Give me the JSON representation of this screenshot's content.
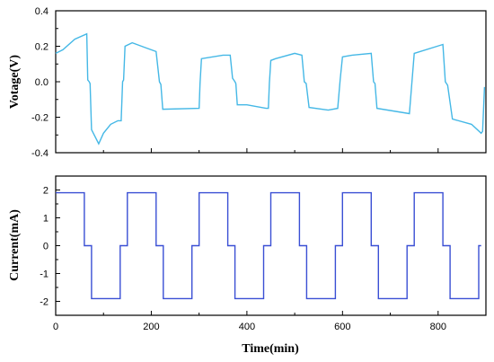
{
  "chart_data": [
    {
      "type": "line",
      "ylabel": "Votage(V)",
      "xlim": [
        0,
        900
      ],
      "ylim": [
        -0.4,
        0.4
      ],
      "yticks": [
        "0.4",
        "0.2",
        "0.0",
        "-0.2",
        "-0.4"
      ],
      "grid": false,
      "color": "#45b8e6",
      "series": [
        {
          "x": [
            0,
            15,
            40,
            65,
            67,
            70,
            72,
            75,
            90,
            100,
            115,
            130,
            137,
            140,
            142,
            145,
            160,
            190,
            210,
            217,
            220,
            224,
            300,
            302,
            305,
            350,
            365,
            370,
            375,
            377,
            380,
            400,
            440,
            445,
            447,
            450,
            460,
            500,
            515,
            520,
            524,
            530,
            570,
            590,
            595,
            600,
            620,
            660,
            665,
            668,
            672,
            740,
            745,
            750,
            810,
            815,
            820,
            830,
            870,
            890,
            893,
            897
          ],
          "y": [
            0.16,
            0.18,
            0.24,
            0.27,
            0.01,
            0.0,
            -0.01,
            -0.27,
            -0.35,
            -0.29,
            -0.24,
            -0.22,
            -0.22,
            0.0,
            0.01,
            0.2,
            0.22,
            0.19,
            0.17,
            0.0,
            -0.015,
            -0.155,
            -0.15,
            -0.01,
            0.13,
            0.15,
            0.15,
            0.02,
            0.0,
            -0.01,
            -0.13,
            -0.13,
            -0.15,
            -0.15,
            -0.01,
            0.12,
            0.13,
            0.16,
            0.15,
            0.0,
            -0.01,
            -0.145,
            -0.16,
            -0.15,
            0.01,
            0.14,
            0.15,
            0.16,
            0.0,
            -0.01,
            -0.15,
            -0.18,
            -0.01,
            0.16,
            0.21,
            0.0,
            -0.02,
            -0.21,
            -0.24,
            -0.29,
            -0.28,
            -0.03
          ]
        }
      ]
    },
    {
      "type": "line",
      "xlabel": "Time(min)",
      "ylabel": "Current(mA)",
      "xlim": [
        0,
        900
      ],
      "ylim": [
        -2.5,
        2.5
      ],
      "xticks": [
        "0",
        "200",
        "400",
        "600",
        "800"
      ],
      "yticks": [
        "2",
        "1",
        "0",
        "-1",
        "-2"
      ],
      "grid": false,
      "color": "#3a4fd4",
      "series": [
        {
          "x": [
            0,
            60,
            60,
            75,
            75,
            135,
            135,
            150,
            150,
            210,
            210,
            225,
            225,
            285,
            285,
            300,
            300,
            360,
            360,
            375,
            375,
            435,
            435,
            450,
            450,
            510,
            510,
            525,
            525,
            585,
            585,
            600,
            600,
            660,
            660,
            675,
            675,
            735,
            735,
            750,
            750,
            810,
            810,
            825,
            825,
            885,
            885,
            890
          ],
          "y": [
            1.9,
            1.9,
            0,
            0,
            -1.9,
            -1.9,
            0,
            0,
            1.9,
            1.9,
            0,
            0,
            -1.9,
            -1.9,
            0,
            0,
            1.9,
            1.9,
            0,
            0,
            -1.9,
            -1.9,
            0,
            0,
            1.9,
            1.9,
            0,
            0,
            -1.9,
            -1.9,
            0,
            0,
            1.9,
            1.9,
            0,
            0,
            -1.9,
            -1.9,
            0,
            0,
            1.9,
            1.9,
            0,
            0,
            -1.9,
            -1.9,
            0,
            0
          ]
        }
      ]
    }
  ]
}
